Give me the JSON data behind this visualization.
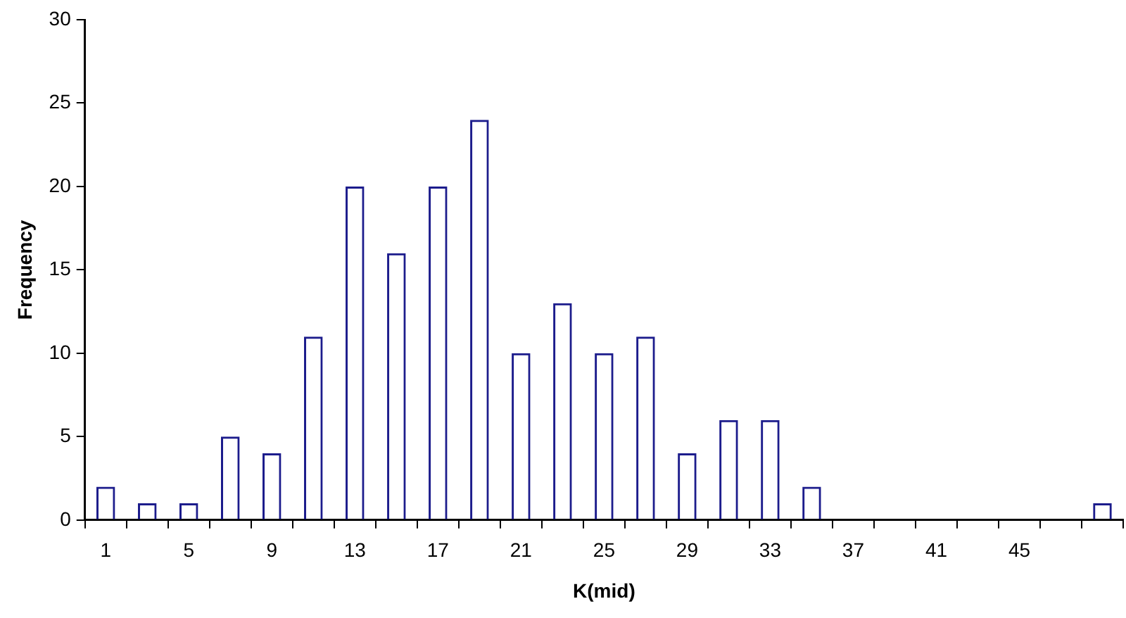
{
  "chart_data": {
    "type": "bar",
    "xlabel": "K(mid)",
    "ylabel": "Frequency",
    "categories": [
      "1",
      null,
      "5",
      null,
      "9",
      null,
      "13",
      null,
      "17",
      null,
      "21",
      null,
      "25",
      null,
      "29",
      null,
      "33",
      null,
      "37",
      null,
      "41",
      null,
      "45",
      null,
      null
    ],
    "values": [
      2,
      1,
      1,
      5,
      4,
      11,
      20,
      16,
      20,
      24,
      10,
      13,
      10,
      11,
      4,
      6,
      6,
      2,
      0,
      0,
      0,
      0,
      0,
      0,
      1
    ],
    "color": "#1c1c8c",
    "ylim": [
      0,
      30
    ],
    "yticks": [
      0,
      5,
      10,
      15,
      20,
      25,
      30
    ],
    "grid": false,
    "legend": false
  }
}
